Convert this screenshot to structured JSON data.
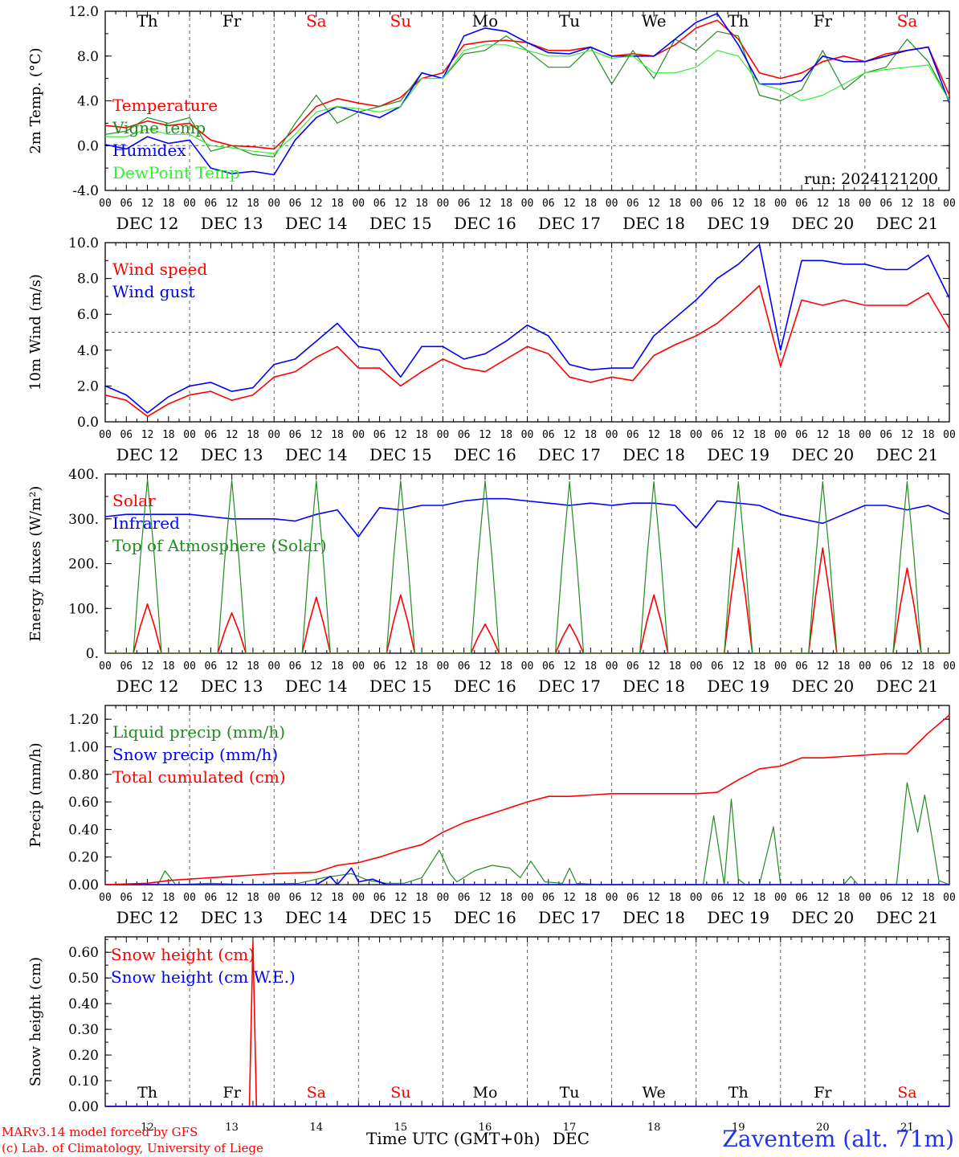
{
  "footer": {
    "model": "MARv3.14 model forced by GFS",
    "lab": "(c) Lab. of Climatology, University of Liege",
    "time_label": "Time UTC (GMT+0h)",
    "month": "DEC",
    "station": "Zaventem (alt. 71m)"
  },
  "run_label": "run: 2024121200",
  "colors": {
    "red": "#ff0000",
    "green": "#228b22",
    "blue": "#0000ff",
    "lightgreen": "#33ee33",
    "weekday": "#000000",
    "weekend": "#ff0000"
  },
  "days": [
    {
      "dow": "Th",
      "date": "DEC 12",
      "num": "12",
      "weekend": false
    },
    {
      "dow": "Fr",
      "date": "DEC 13",
      "num": "13",
      "weekend": false
    },
    {
      "dow": "Sa",
      "date": "DEC 14",
      "num": "14",
      "weekend": true
    },
    {
      "dow": "Su",
      "date": "DEC 15",
      "num": "15",
      "weekend": true
    },
    {
      "dow": "Mo",
      "date": "DEC 16",
      "num": "16",
      "weekend": false
    },
    {
      "dow": "Tu",
      "date": "DEC 17",
      "num": "17",
      "weekend": false
    },
    {
      "dow": "We",
      "date": "DEC 18",
      "num": "18",
      "weekend": false
    },
    {
      "dow": "Th",
      "date": "DEC 19",
      "num": "19",
      "weekend": false
    },
    {
      "dow": "Fr",
      "date": "DEC 20",
      "num": "20",
      "weekend": false
    },
    {
      "dow": "Sa",
      "date": "DEC 21",
      "num": "21",
      "weekend": true
    }
  ],
  "hour_ticks": [
    "00",
    "06",
    "12",
    "18"
  ],
  "chart_data": [
    {
      "type": "line",
      "ylabel": "2m Temp. (°C)",
      "ylim": [
        -4,
        12
      ],
      "yticks": [
        "-4.0",
        "0.0",
        "4.0",
        "8.0",
        "12.0"
      ],
      "ytick_values": [
        -4,
        0,
        4,
        8,
        12
      ],
      "ref_line": 0,
      "x_unit": "hours since DEC 12 00 UTC",
      "series": [
        {
          "name": "Temperature",
          "color": "red",
          "x": [
            0,
            6,
            12,
            18,
            24,
            30,
            36,
            42,
            48,
            54,
            60,
            66,
            72,
            78,
            84,
            90,
            96,
            102,
            108,
            114,
            120,
            126,
            132,
            138,
            144,
            150,
            156,
            162,
            168,
            174,
            180,
            186,
            192,
            198,
            204,
            210,
            216,
            222,
            228,
            234,
            240
          ],
          "y": [
            1.8,
            1.6,
            2.2,
            1.8,
            2.0,
            0.5,
            0.0,
            -0.1,
            -0.3,
            1.5,
            3.5,
            4.2,
            3.8,
            3.5,
            4.3,
            6.0,
            6.5,
            9.0,
            9.3,
            9.4,
            9.2,
            8.5,
            8.5,
            8.8,
            8.0,
            8.2,
            8.0,
            9.0,
            10.5,
            11.2,
            9.5,
            6.5,
            6.0,
            6.5,
            7.5,
            8.0,
            7.5,
            8.2,
            8.5,
            8.8,
            4.5
          ]
        },
        {
          "name": "Vigne temp",
          "color": "green",
          "x": [
            0,
            6,
            12,
            18,
            24,
            30,
            36,
            42,
            48,
            54,
            60,
            66,
            72,
            78,
            84,
            90,
            96,
            102,
            108,
            114,
            120,
            126,
            132,
            138,
            144,
            150,
            156,
            162,
            168,
            174,
            180,
            186,
            192,
            198,
            204,
            210,
            216,
            222,
            228,
            234,
            240
          ],
          "y": [
            1.0,
            1.3,
            2.5,
            2.0,
            2.5,
            -0.5,
            0.0,
            -0.8,
            -1.0,
            2.0,
            4.5,
            2.0,
            3.0,
            3.5,
            4.0,
            6.5,
            6.0,
            8.2,
            8.5,
            9.8,
            8.5,
            7.0,
            7.0,
            8.8,
            5.5,
            8.5,
            6.0,
            9.5,
            8.5,
            10.2,
            9.8,
            4.5,
            4.0,
            5.0,
            8.5,
            5.0,
            6.5,
            7.0,
            9.5,
            7.5,
            4.0
          ]
        },
        {
          "name": "Humidex",
          "color": "blue",
          "x": [
            0,
            6,
            12,
            18,
            24,
            30,
            36,
            42,
            48,
            54,
            60,
            66,
            72,
            78,
            84,
            90,
            96,
            102,
            108,
            114,
            120,
            126,
            132,
            138,
            144,
            150,
            156,
            162,
            168,
            174,
            180,
            186,
            192,
            198,
            204,
            210,
            216,
            222,
            228,
            234,
            240
          ],
          "y": [
            0.1,
            -0.3,
            0.8,
            0.2,
            0.5,
            -2.0,
            -2.5,
            -2.3,
            -2.6,
            0.5,
            2.5,
            3.5,
            3.0,
            2.5,
            3.5,
            6.5,
            6.0,
            9.8,
            10.5,
            10.2,
            9.2,
            8.3,
            8.2,
            8.8,
            8.0,
            8.0,
            8.0,
            9.5,
            11.0,
            11.8,
            9.0,
            5.5,
            5.5,
            5.8,
            8.0,
            7.5,
            7.5,
            8.0,
            8.5,
            8.8,
            3.8
          ]
        },
        {
          "name": "DewPoint Temp",
          "color": "lightgreen",
          "x": [
            0,
            6,
            12,
            18,
            24,
            30,
            36,
            42,
            48,
            54,
            60,
            66,
            72,
            78,
            84,
            90,
            96,
            102,
            108,
            114,
            120,
            126,
            132,
            138,
            144,
            150,
            156,
            162,
            168,
            174,
            180,
            186,
            192,
            198,
            204,
            210,
            216,
            222,
            228,
            234,
            240
          ],
          "y": [
            0.8,
            0.8,
            1.5,
            1.0,
            1.0,
            0.0,
            -0.2,
            -0.5,
            -0.7,
            1.0,
            3.0,
            3.5,
            3.3,
            3.0,
            3.5,
            6.0,
            6.0,
            8.5,
            9.0,
            9.0,
            8.5,
            8.0,
            8.0,
            8.5,
            7.8,
            8.0,
            6.5,
            6.5,
            7.0,
            8.5,
            8.0,
            5.5,
            5.0,
            4.0,
            4.5,
            5.5,
            6.5,
            6.8,
            7.0,
            7.2,
            4.0
          ]
        }
      ]
    },
    {
      "type": "line",
      "ylabel": "10m Wind (m/s)",
      "ylim": [
        0,
        10
      ],
      "yticks": [
        "0.0",
        "2.0",
        "4.0",
        "6.0",
        "8.0",
        "10.0"
      ],
      "ytick_values": [
        0,
        2,
        4,
        6,
        8,
        10
      ],
      "ref_line": 5,
      "series": [
        {
          "name": "Wind speed",
          "color": "red",
          "x": [
            0,
            6,
            12,
            18,
            24,
            30,
            36,
            42,
            48,
            54,
            60,
            66,
            72,
            78,
            84,
            90,
            96,
            102,
            108,
            114,
            120,
            126,
            132,
            138,
            144,
            150,
            156,
            162,
            168,
            174,
            180,
            186,
            192,
            198,
            204,
            210,
            216,
            222,
            228,
            234,
            240
          ],
          "y": [
            1.5,
            1.2,
            0.3,
            1.0,
            1.5,
            1.7,
            1.2,
            1.5,
            2.5,
            2.8,
            3.6,
            4.2,
            3.0,
            3.0,
            2.0,
            2.8,
            3.5,
            3.0,
            2.8,
            3.5,
            4.2,
            3.8,
            2.5,
            2.2,
            2.5,
            2.3,
            3.7,
            4.3,
            4.8,
            5.5,
            6.5,
            7.6,
            3.1,
            6.8,
            6.5,
            6.8,
            6.5,
            6.5,
            6.5,
            7.2,
            5.2
          ]
        },
        {
          "name": "Wind gust",
          "color": "blue",
          "x": [
            0,
            6,
            12,
            18,
            24,
            30,
            36,
            42,
            48,
            54,
            60,
            66,
            72,
            78,
            84,
            90,
            96,
            102,
            108,
            114,
            120,
            126,
            132,
            138,
            144,
            150,
            156,
            162,
            168,
            174,
            180,
            186,
            192,
            198,
            204,
            210,
            216,
            222,
            228,
            234,
            240
          ],
          "y": [
            2.0,
            1.5,
            0.5,
            1.4,
            2.0,
            2.2,
            1.7,
            1.9,
            3.2,
            3.5,
            4.5,
            5.5,
            4.2,
            4.0,
            2.5,
            4.2,
            4.2,
            3.5,
            3.8,
            4.5,
            5.4,
            4.8,
            3.2,
            2.9,
            3.0,
            3.0,
            4.8,
            5.8,
            6.8,
            8.0,
            8.8,
            9.9,
            4.0,
            9.0,
            9.0,
            8.8,
            8.8,
            8.5,
            8.5,
            9.3,
            6.9
          ]
        }
      ]
    },
    {
      "type": "line",
      "ylabel": "Energy fluxes (W/m²)",
      "ylim": [
        0,
        400
      ],
      "yticks": [
        "0.",
        "100.",
        "200.",
        "300.",
        "400."
      ],
      "ytick_values": [
        0,
        100,
        200,
        300,
        400
      ],
      "series": [
        {
          "name": "Solar",
          "color": "red",
          "peaks": [
            {
              "t": 12,
              "v": 110
            },
            {
              "t": 36,
              "v": 90
            },
            {
              "t": 60,
              "v": 125
            },
            {
              "t": 84,
              "v": 130
            },
            {
              "t": 108,
              "v": 65
            },
            {
              "t": 132,
              "v": 65
            },
            {
              "t": 156,
              "v": 130
            },
            {
              "t": 180,
              "v": 235
            },
            {
              "t": 204,
              "v": 235
            },
            {
              "t": 228,
              "v": 190
            }
          ]
        },
        {
          "name": "Infrared",
          "color": "blue",
          "x": [
            0,
            6,
            12,
            18,
            24,
            30,
            36,
            42,
            48,
            54,
            60,
            66,
            72,
            78,
            84,
            90,
            96,
            102,
            108,
            114,
            120,
            126,
            132,
            138,
            144,
            150,
            156,
            162,
            168,
            174,
            180,
            186,
            192,
            198,
            204,
            210,
            216,
            222,
            228,
            234,
            240
          ],
          "y": [
            305,
            310,
            310,
            310,
            310,
            305,
            300,
            300,
            300,
            295,
            310,
            320,
            260,
            325,
            320,
            330,
            330,
            340,
            345,
            345,
            340,
            335,
            330,
            335,
            330,
            335,
            335,
            330,
            280,
            340,
            335,
            330,
            310,
            300,
            290,
            310,
            330,
            330,
            320,
            330,
            310
          ]
        },
        {
          "name": "Top of Atmosphere (Solar)",
          "color": "green",
          "peaks": [
            {
              "t": 12,
              "v": 388
            },
            {
              "t": 36,
              "v": 386
            },
            {
              "t": 60,
              "v": 385
            },
            {
              "t": 84,
              "v": 385
            },
            {
              "t": 108,
              "v": 385
            },
            {
              "t": 132,
              "v": 383
            },
            {
              "t": 156,
              "v": 383
            },
            {
              "t": 180,
              "v": 383
            },
            {
              "t": 204,
              "v": 383
            },
            {
              "t": 228,
              "v": 383
            }
          ]
        }
      ]
    },
    {
      "type": "line",
      "ylabel": "Precip (mm/h)",
      "ylim": [
        0,
        1.3
      ],
      "yticks": [
        "0.00",
        "0.20",
        "0.40",
        "0.60",
        "0.80",
        "1.00",
        "1.20"
      ],
      "ytick_values": [
        0,
        0.2,
        0.4,
        0.6,
        0.8,
        1.0,
        1.2
      ],
      "series": [
        {
          "name": "Liquid precip (mm/h)",
          "color": "green",
          "x": [
            0,
            15,
            17,
            20,
            30,
            40,
            55,
            62,
            70,
            75,
            80,
            85,
            90,
            95,
            98,
            100,
            105,
            110,
            115,
            118,
            121,
            125,
            130,
            132,
            134,
            140,
            170,
            173,
            176,
            178,
            180,
            182,
            184,
            186,
            190,
            192,
            196,
            200,
            210,
            212,
            214,
            225,
            228,
            231,
            233,
            235,
            237,
            240
          ],
          "y": [
            0,
            0,
            0.1,
            0,
            0.01,
            0,
            0.01,
            0.05,
            0.08,
            0.03,
            0.01,
            0.01,
            0.05,
            0.25,
            0.08,
            0.02,
            0.1,
            0.14,
            0.12,
            0.05,
            0.17,
            0.02,
            0.01,
            0.12,
            0.01,
            0,
            0,
            0.5,
            0,
            0.62,
            0.04,
            0,
            0,
            0,
            0.42,
            0,
            0,
            0,
            0,
            0.06,
            0,
            0,
            0.74,
            0.38,
            0.65,
            0.35,
            0.03,
            0
          ]
        },
        {
          "name": "Snow precip (mm/h)",
          "color": "blue",
          "x": [
            0,
            60,
            64,
            66,
            70,
            72,
            76,
            80,
            90,
            240
          ],
          "y": [
            0,
            0,
            0.06,
            0,
            0.12,
            0.02,
            0.04,
            0,
            0,
            0
          ]
        },
        {
          "name": "Total cumulated (cm)",
          "color": "red",
          "x": [
            0,
            12,
            18,
            24,
            36,
            42,
            48,
            60,
            66,
            72,
            78,
            84,
            90,
            96,
            102,
            108,
            114,
            120,
            126,
            132,
            138,
            144,
            156,
            168,
            174,
            180,
            186,
            192,
            198,
            204,
            210,
            216,
            222,
            228,
            234,
            240
          ],
          "y": [
            0,
            0.01,
            0.03,
            0.04,
            0.06,
            0.07,
            0.08,
            0.09,
            0.14,
            0.16,
            0.2,
            0.25,
            0.29,
            0.38,
            0.45,
            0.5,
            0.55,
            0.6,
            0.64,
            0.64,
            0.65,
            0.66,
            0.66,
            0.66,
            0.67,
            0.76,
            0.84,
            0.86,
            0.92,
            0.92,
            0.93,
            0.94,
            0.95,
            0.95,
            1.1,
            1.23
          ]
        }
      ]
    },
    {
      "type": "line",
      "ylabel": "Snow height (cm)",
      "ylim": [
        0,
        0.66
      ],
      "yticks": [
        "0.00",
        "0.10",
        "0.20",
        "0.30",
        "0.40",
        "0.50",
        "0.60"
      ],
      "ytick_values": [
        0,
        0.1,
        0.2,
        0.3,
        0.4,
        0.5,
        0.6
      ],
      "series": [
        {
          "name": "Snow height (cm)",
          "color": "red",
          "x": [
            0,
            41,
            42,
            43,
            240
          ],
          "y": [
            0,
            0,
            0.64,
            0,
            0
          ]
        },
        {
          "name": "Snow height (cm W.E.)",
          "color": "blue",
          "x": [
            0,
            240
          ],
          "y": [
            0,
            0
          ]
        }
      ]
    }
  ]
}
